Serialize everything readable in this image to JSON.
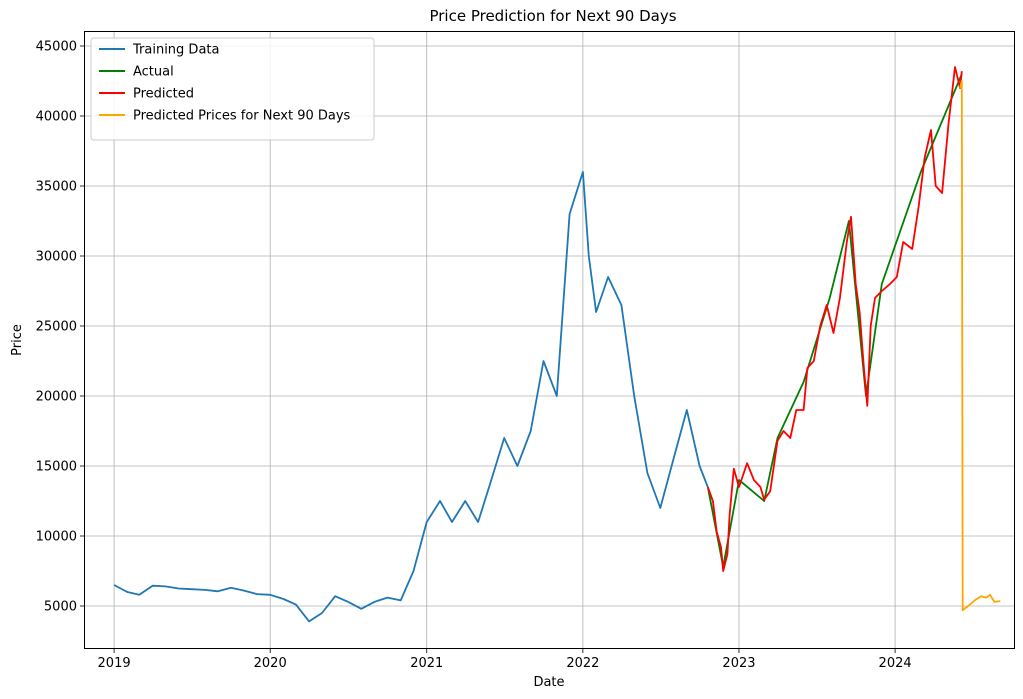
{
  "chart_data": {
    "type": "line",
    "title": "Price Prediction for Next 90 Days",
    "xlabel": "Date",
    "ylabel": "Price",
    "xlim": [
      "2018-10-25",
      "2024-10-05"
    ],
    "ylim": [
      2000,
      46000
    ],
    "x_ticks": [
      "2019",
      "2020",
      "2021",
      "2022",
      "2023",
      "2024"
    ],
    "y_ticks": [
      5000,
      10000,
      15000,
      20000,
      25000,
      30000,
      35000,
      40000,
      45000
    ],
    "grid": true,
    "legend_position": "top-left",
    "series": [
      {
        "name": "Training Data",
        "color": "#1f77b4",
        "points": [
          [
            "2019-01-01",
            6500
          ],
          [
            "2019-02-01",
            6000
          ],
          [
            "2019-03-01",
            5800
          ],
          [
            "2019-04-01",
            6450
          ],
          [
            "2019-05-01",
            6400
          ],
          [
            "2019-06-01",
            6250
          ],
          [
            "2019-07-01",
            6200
          ],
          [
            "2019-08-01",
            6150
          ],
          [
            "2019-09-01",
            6050
          ],
          [
            "2019-10-01",
            6300
          ],
          [
            "2019-11-01",
            6100
          ],
          [
            "2019-12-01",
            5850
          ],
          [
            "2020-01-01",
            5800
          ],
          [
            "2020-02-01",
            5500
          ],
          [
            "2020-03-01",
            5100
          ],
          [
            "2020-04-01",
            3900
          ],
          [
            "2020-05-01",
            4500
          ],
          [
            "2020-06-01",
            5700
          ],
          [
            "2020-07-01",
            5300
          ],
          [
            "2020-08-01",
            4800
          ],
          [
            "2020-09-01",
            5300
          ],
          [
            "2020-10-01",
            5600
          ],
          [
            "2020-11-01",
            5400
          ],
          [
            "2020-12-01",
            7500
          ],
          [
            "2021-01-01",
            11000
          ],
          [
            "2021-02-01",
            12500
          ],
          [
            "2021-03-01",
            11000
          ],
          [
            "2021-04-01",
            12500
          ],
          [
            "2021-05-01",
            11000
          ],
          [
            "2021-06-01",
            14000
          ],
          [
            "2021-07-01",
            17000
          ],
          [
            "2021-08-01",
            15000
          ],
          [
            "2021-09-01",
            17500
          ],
          [
            "2021-10-01",
            22500
          ],
          [
            "2021-11-01",
            20000
          ],
          [
            "2021-12-01",
            33000
          ],
          [
            "2022-01-01",
            36000
          ],
          [
            "2022-01-15",
            30000
          ],
          [
            "2022-02-01",
            26000
          ],
          [
            "2022-03-01",
            28500
          ],
          [
            "2022-04-01",
            26500
          ],
          [
            "2022-05-01",
            20000
          ],
          [
            "2022-06-01",
            14500
          ],
          [
            "2022-07-01",
            12000
          ],
          [
            "2022-08-01",
            15500
          ],
          [
            "2022-09-01",
            19000
          ],
          [
            "2022-10-01",
            15000
          ],
          [
            "2022-10-20",
            13500
          ]
        ]
      },
      {
        "name": "Actual",
        "color": "#008000",
        "points": [
          [
            "2022-10-20",
            13500
          ],
          [
            "2022-11-25",
            7800
          ],
          [
            "2023-01-01",
            14000
          ],
          [
            "2023-03-01",
            12500
          ],
          [
            "2023-04-01",
            17000
          ],
          [
            "2023-06-01",
            21000
          ],
          [
            "2023-08-01",
            27000
          ],
          [
            "2023-09-15",
            32500
          ],
          [
            "2023-10-25",
            20000
          ],
          [
            "2023-12-01",
            28000
          ],
          [
            "2024-03-01",
            36000
          ],
          [
            "2024-06-05",
            43000
          ]
        ]
      },
      {
        "name": "Predicted",
        "color": "#ff0000",
        "points": [
          [
            "2022-10-20",
            13500
          ],
          [
            "2022-11-01",
            12500
          ],
          [
            "2022-11-10",
            10300
          ],
          [
            "2022-11-20",
            9200
          ],
          [
            "2022-11-25",
            7500
          ],
          [
            "2022-12-05",
            8700
          ],
          [
            "2022-12-10",
            11500
          ],
          [
            "2022-12-20",
            14800
          ],
          [
            "2023-01-01",
            13500
          ],
          [
            "2023-01-20",
            15200
          ],
          [
            "2023-02-05",
            14000
          ],
          [
            "2023-02-20",
            13500
          ],
          [
            "2023-03-01",
            12600
          ],
          [
            "2023-03-15",
            13200
          ],
          [
            "2023-04-01",
            16800
          ],
          [
            "2023-04-15",
            17500
          ],
          [
            "2023-05-01",
            17000
          ],
          [
            "2023-05-15",
            19000
          ],
          [
            "2023-06-01",
            19000
          ],
          [
            "2023-06-10",
            22000
          ],
          [
            "2023-06-25",
            22500
          ],
          [
            "2023-07-10",
            25000
          ],
          [
            "2023-07-25",
            26500
          ],
          [
            "2023-08-10",
            24500
          ],
          [
            "2023-08-25",
            27000
          ],
          [
            "2023-09-10",
            31000
          ],
          [
            "2023-09-20",
            32800
          ],
          [
            "2023-10-01",
            28000
          ],
          [
            "2023-10-10",
            26000
          ],
          [
            "2023-10-20",
            22000
          ],
          [
            "2023-10-28",
            19300
          ],
          [
            "2023-11-05",
            25000
          ],
          [
            "2023-11-15",
            27000
          ],
          [
            "2023-12-01",
            27500
          ],
          [
            "2023-12-20",
            28000
          ],
          [
            "2024-01-05",
            28500
          ],
          [
            "2024-01-20",
            31000
          ],
          [
            "2024-02-10",
            30500
          ],
          [
            "2024-02-25",
            33500
          ],
          [
            "2024-03-10",
            37000
          ],
          [
            "2024-03-25",
            39000
          ],
          [
            "2024-04-05",
            35000
          ],
          [
            "2024-04-20",
            34500
          ],
          [
            "2024-05-05",
            39500
          ],
          [
            "2024-05-20",
            43500
          ],
          [
            "2024-06-01",
            42000
          ],
          [
            "2024-06-05",
            43200
          ]
        ]
      },
      {
        "name": "Predicted Prices for Next 90 Days",
        "color": "#ffa500",
        "points": [
          [
            "2024-06-01",
            42000
          ],
          [
            "2024-06-05",
            42500
          ],
          [
            "2024-06-07",
            4700
          ],
          [
            "2024-06-20",
            5000
          ],
          [
            "2024-07-05",
            5400
          ],
          [
            "2024-07-20",
            5700
          ],
          [
            "2024-08-01",
            5600
          ],
          [
            "2024-08-10",
            5800
          ],
          [
            "2024-08-20",
            5300
          ],
          [
            "2024-09-03",
            5350
          ]
        ]
      }
    ]
  }
}
